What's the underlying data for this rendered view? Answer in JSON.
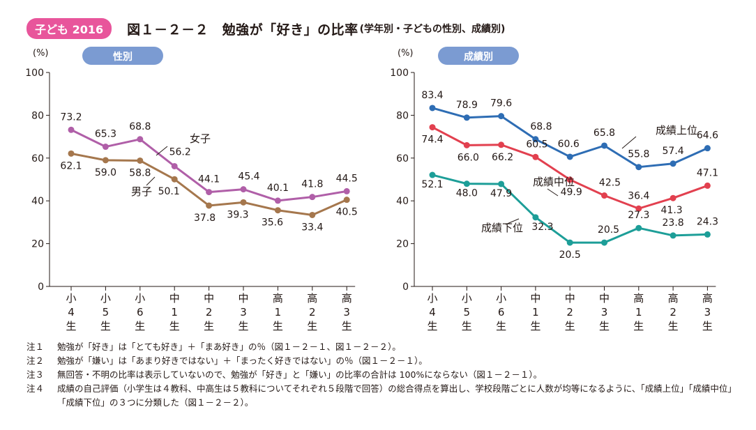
{
  "header": {
    "badge": "子ども 2016",
    "title": "図１－２－２　勉強が「好き」の比率",
    "subtitle": "(学年別・子どもの性別、成績別)"
  },
  "chart_data": [
    {
      "type": "line",
      "panel_label": "性別",
      "ylabel": "(%)",
      "ylim": [
        0,
        100
      ],
      "yticks": [
        0,
        20,
        40,
        60,
        80,
        100
      ],
      "categories": [
        "小4生",
        "小5生",
        "小6生",
        "中1生",
        "中2生",
        "中3生",
        "高1生",
        "高2生",
        "高3生"
      ],
      "series": [
        {
          "name": "女子",
          "color": "#b05fa8",
          "values": [
            73.2,
            65.3,
            68.8,
            56.2,
            44.1,
            45.4,
            40.1,
            41.8,
            44.5
          ]
        },
        {
          "name": "男子",
          "color": "#a5774d",
          "values": [
            62.1,
            59.0,
            58.8,
            50.1,
            37.8,
            39.3,
            35.6,
            33.4,
            40.5
          ]
        }
      ]
    },
    {
      "type": "line",
      "panel_label": "成績別",
      "ylabel": "(%)",
      "ylim": [
        0,
        100
      ],
      "yticks": [
        0,
        20,
        40,
        60,
        80,
        100
      ],
      "categories": [
        "小4生",
        "小5生",
        "小6生",
        "中1生",
        "中2生",
        "中3生",
        "高1生",
        "高2生",
        "高3生"
      ],
      "series": [
        {
          "name": "成績上位",
          "color": "#2e6db4",
          "values": [
            83.4,
            78.9,
            79.6,
            68.8,
            60.6,
            65.8,
            55.8,
            57.4,
            64.6
          ]
        },
        {
          "name": "成績中位",
          "color": "#e2404f",
          "values": [
            74.4,
            66.0,
            66.2,
            60.5,
            49.9,
            42.5,
            36.4,
            41.3,
            47.1
          ]
        },
        {
          "name": "成績下位",
          "color": "#1d9e98",
          "values": [
            52.1,
            48.0,
            47.9,
            32.3,
            20.5,
            20.5,
            27.3,
            23.8,
            24.3
          ]
        }
      ]
    }
  ],
  "notes": [
    {
      "label": "注１",
      "text": "勉強が「好き」は「とても好き」＋「まあ好き」の％（図１－２－１、図１－２－２）。"
    },
    {
      "label": "注２",
      "text": "勉強が「嫌い」は「あまり好きではない」＋「まったく好きではない」の％（図１－２－１）。"
    },
    {
      "label": "注３",
      "text": "無回答・不明の比率は表示していないので、勉強が「好き」と「嫌い」の比率の合計は 100%にならない（図１－２－１）。"
    },
    {
      "label": "注４",
      "text": "成績の自己評価（小学生は４教科、中高生は５教科についてそれぞれ５段階で回答）の総合得点を算出し、学校段階ごとに人数が均等になるように、「成績上位」「成績中位」「成績下位」の３つに分類した（図１－２－２）。"
    }
  ]
}
